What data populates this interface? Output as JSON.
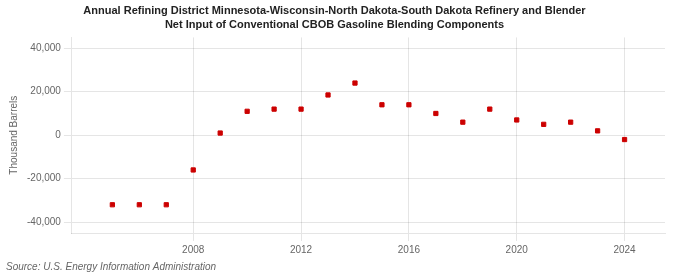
{
  "chart_data": {
    "type": "scatter",
    "title": "Annual Refining District Minnesota-Wisconsin-North Dakota-South Dakota Refinery and Blender",
    "subtitle": "Net Input of Conventional CBOB Gasoline Blending Components",
    "ylabel": "Thousand Barrels",
    "annotation": "Source: U.S. Energy Information Administration",
    "x": [
      2005,
      2006,
      2007,
      2008,
      2009,
      2010,
      2011,
      2012,
      2013,
      2014,
      2015,
      2016,
      2017,
      2018,
      2019,
      2020,
      2021,
      2022,
      2023,
      2024
    ],
    "values": [
      -32000,
      -32000,
      -32000,
      -16000,
      1000,
      11000,
      12000,
      12000,
      18500,
      24000,
      14000,
      14000,
      10000,
      6000,
      12000,
      7000,
      5000,
      6000,
      2000,
      -2000
    ],
    "color": "#cc0000",
    "marker": "square",
    "xlim": [
      2003.5,
      2025.5
    ],
    "ylim": [
      -45000,
      45000
    ],
    "xticks": [
      2008,
      2012,
      2016,
      2020,
      2024
    ],
    "yticks": [
      {
        "value": -40000,
        "label": "-40,000"
      },
      {
        "value": -20000,
        "label": "-20,000"
      },
      0,
      {
        "value": 20000,
        "label": "20,000"
      },
      {
        "value": 40000,
        "label": "40,000"
      }
    ],
    "grid": true
  }
}
